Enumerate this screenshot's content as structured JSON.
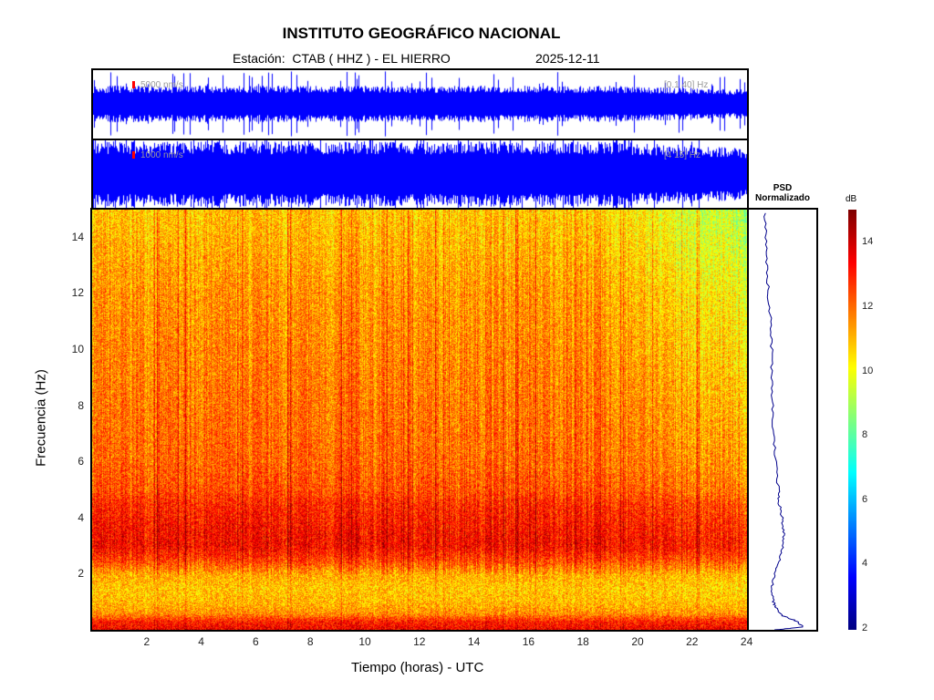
{
  "header": {
    "title": "INSTITUTO GEOGRÁFICO NACIONAL",
    "station": "Estación:  CTAB ( HHZ ) - EL HIERRO",
    "date": "2025-12-11"
  },
  "traces": [
    {
      "scale_label": "5000 nm/s",
      "band_label": "[0.1 40] Hz",
      "color": "#0000ff"
    },
    {
      "scale_label": "1000 nm/s",
      "band_label": "[4 15] Hz",
      "color": "#0000ff"
    }
  ],
  "psd": {
    "title_line1": "PSD",
    "title_line2": "Normalizado",
    "color": "#00008b"
  },
  "colorbar": {
    "label": "dB",
    "min": 2,
    "max": 15,
    "ticks": [
      "2",
      "4",
      "6",
      "8",
      "10",
      "12",
      "14"
    ]
  },
  "chart_data": {
    "type": "heatmap",
    "title": "INSTITUTO GEOGRÁFICO NACIONAL",
    "xlabel": "Tiempo (horas) - UTC",
    "ylabel": "Frecuencia  (Hz)",
    "xlim": [
      0,
      24
    ],
    "ylim": [
      0,
      15
    ],
    "xticks": [
      "2",
      "4",
      "6",
      "8",
      "10",
      "12",
      "14",
      "16",
      "18",
      "20",
      "22",
      "24"
    ],
    "yticks": [
      "2",
      "4",
      "6",
      "8",
      "10",
      "12",
      "14"
    ],
    "colormap": "jet",
    "mean_db_profile": {
      "freq_hz": [
        0,
        0.3,
        0.6,
        1,
        1.5,
        2,
        2.5,
        3,
        3.5,
        4,
        4.5,
        5,
        6,
        8,
        10,
        12,
        14,
        15
      ],
      "db": [
        13.5,
        13,
        11.5,
        11,
        10.8,
        11.2,
        12.5,
        13.3,
        13.2,
        13,
        12.8,
        12.3,
        12,
        11.8,
        11.6,
        11.4,
        11,
        10.8
      ]
    },
    "psd_normalized": {
      "freq_hz": [
        0,
        0.1,
        0.3,
        0.5,
        0.8,
        1,
        1.5,
        2,
        2.5,
        3,
        3.5,
        4,
        4.5,
        5,
        6,
        7,
        8,
        9,
        10,
        11,
        12,
        13,
        14,
        15
      ],
      "value": [
        0.4,
        0.8,
        0.72,
        0.5,
        0.4,
        0.36,
        0.34,
        0.38,
        0.45,
        0.5,
        0.52,
        0.49,
        0.45,
        0.44,
        0.4,
        0.37,
        0.35,
        0.33,
        0.34,
        0.32,
        0.29,
        0.27,
        0.25,
        0.24
      ]
    }
  }
}
